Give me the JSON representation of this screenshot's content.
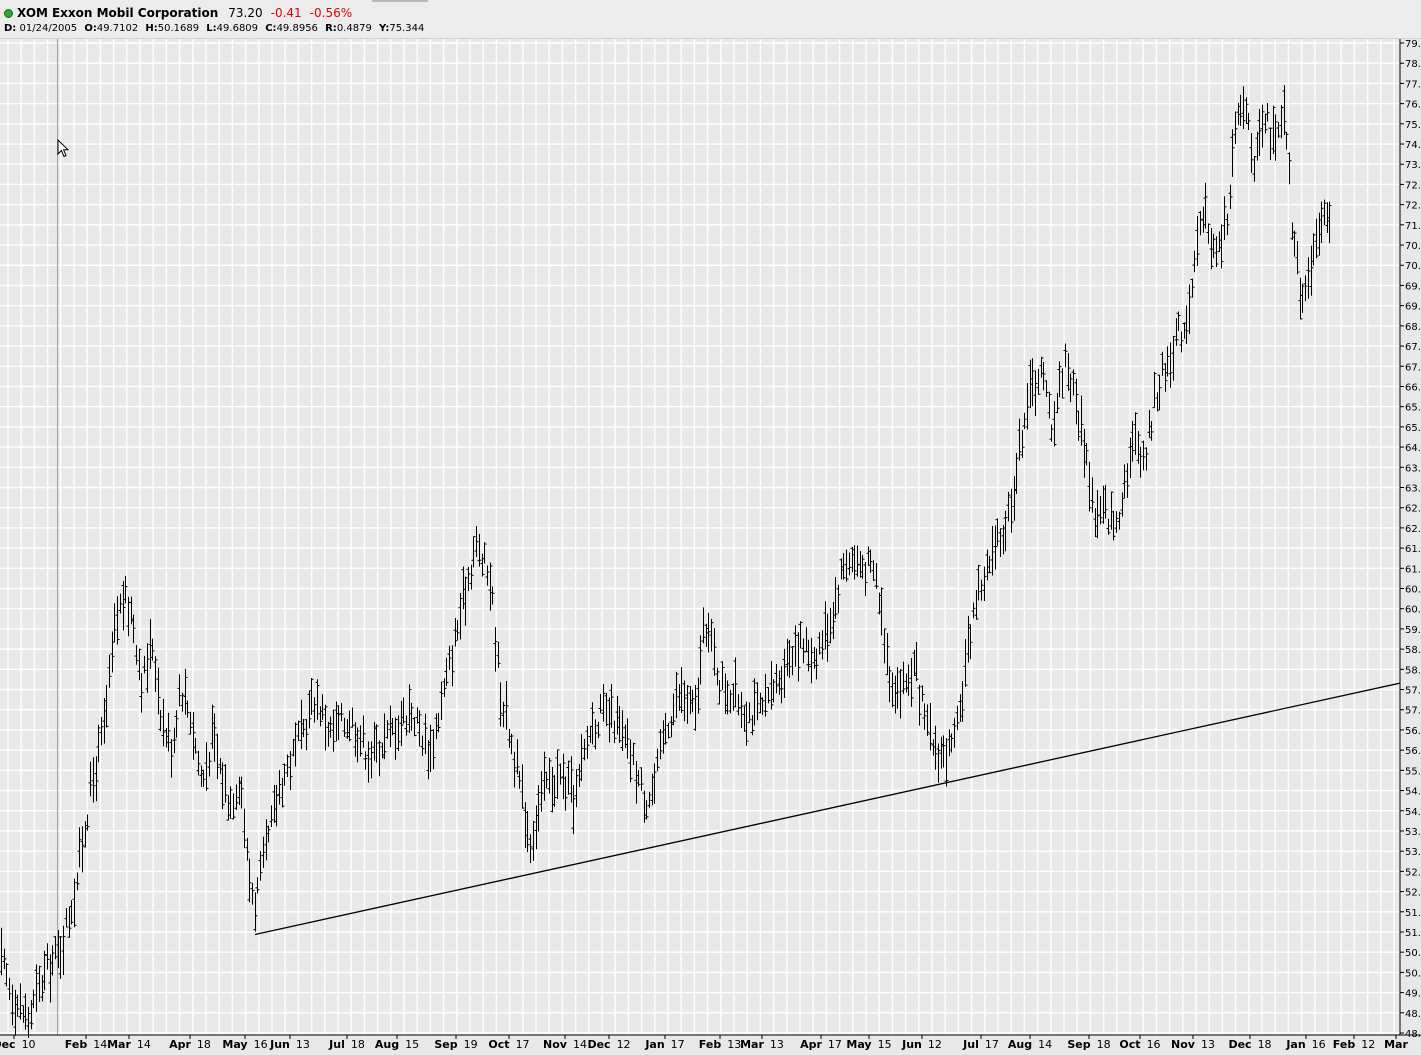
{
  "header": {
    "symbol": "XOM",
    "company": "Exxon Mobil Corporation",
    "price": "73.20",
    "change": "-0.41",
    "change_pct": "-0.56%",
    "status_color": "#2fa82f",
    "negative_color": "#e00000"
  },
  "ohlc": {
    "date_label": "D:",
    "date": "01/24/2005",
    "open_label": "O:",
    "open": "49.7102",
    "high_label": "H:",
    "high": "50.1689",
    "low_label": "L:",
    "low": "49.6809",
    "close_label": "C:",
    "close": "49.8956",
    "range_label": "R:",
    "range": "0.4879",
    "y_label": "Y:",
    "y": "75.344"
  },
  "chart_data": {
    "type": "ohlc-bar",
    "ylim": [
      47.8,
      79.5
    ],
    "y_tick_labels": [
      "79.",
      "78.",
      "77.",
      "76.",
      "75.",
      "74.",
      "73.",
      "72.",
      "72.",
      "71.",
      "70.",
      "70.",
      "69.",
      "69.",
      "68.",
      "67.",
      "67.",
      "66.",
      "65.",
      "65.",
      "64.",
      "63.",
      "63.",
      "62.",
      "62.",
      "61.",
      "61.",
      "60.",
      "60.",
      "59.",
      "58.",
      "58.",
      "57.",
      "57.",
      "56.",
      "56.",
      "55.",
      "54.",
      "54.",
      "53.",
      "53.",
      "52.",
      "52.",
      "51.",
      "51.",
      "50.",
      "50.",
      "49.",
      "48.",
      "48."
    ],
    "x_tick_labels": [
      [
        "Dec",
        "10"
      ],
      [
        "Feb",
        "14"
      ],
      [
        "Mar",
        "14"
      ],
      [
        "Apr",
        "18"
      ],
      [
        "May",
        "16"
      ],
      [
        "Jun",
        "13"
      ],
      [
        "Jul",
        "18"
      ],
      [
        "Aug",
        "15"
      ],
      [
        "Sep",
        "19"
      ],
      [
        "Oct",
        "17"
      ],
      [
        "Nov",
        "14"
      ],
      [
        "Dec",
        "12"
      ],
      [
        "Jan",
        "17"
      ],
      [
        "Feb",
        "13"
      ],
      [
        "Mar",
        "13"
      ],
      [
        "Apr",
        "17"
      ],
      [
        "May",
        "15"
      ],
      [
        "Jun",
        "12"
      ],
      [
        "Jul",
        "17"
      ],
      [
        "Aug",
        "14"
      ],
      [
        "Sep",
        "18"
      ],
      [
        "Oct",
        "16"
      ],
      [
        "Nov",
        "13"
      ],
      [
        "Dec",
        "18"
      ],
      [
        "Jan",
        "16"
      ],
      [
        "Feb",
        "12"
      ],
      [
        "Mar",
        ""
      ]
    ],
    "price_path": [
      [
        0,
        50.2
      ],
      [
        13,
        49.0
      ],
      [
        28,
        48.3
      ],
      [
        45,
        49.8
      ],
      [
        60,
        50.5
      ],
      [
        75,
        52.5
      ],
      [
        90,
        55.5
      ],
      [
        105,
        57.8
      ],
      [
        115,
        60.8
      ],
      [
        122,
        61.7
      ],
      [
        132,
        61.2
      ],
      [
        142,
        59.0
      ],
      [
        152,
        60.3
      ],
      [
        162,
        57.8
      ],
      [
        172,
        56.9
      ],
      [
        180,
        59.0
      ],
      [
        190,
        58.0
      ],
      [
        202,
        55.8
      ],
      [
        212,
        57.3
      ],
      [
        222,
        56.0
      ],
      [
        230,
        55.2
      ],
      [
        240,
        56.1
      ],
      [
        248,
        53.0
      ],
      [
        255,
        52.0
      ],
      [
        265,
        53.5
      ],
      [
        280,
        55.8
      ],
      [
        300,
        57.2
      ],
      [
        315,
        58.6
      ],
      [
        330,
        57.4
      ],
      [
        350,
        57.9
      ],
      [
        370,
        56.7
      ],
      [
        390,
        57.4
      ],
      [
        410,
        58.2
      ],
      [
        430,
        56.8
      ],
      [
        445,
        58.9
      ],
      [
        460,
        61.2
      ],
      [
        475,
        63.4
      ],
      [
        490,
        62.3
      ],
      [
        500,
        58.8
      ],
      [
        510,
        57.3
      ],
      [
        520,
        55.7
      ],
      [
        530,
        54.0
      ],
      [
        545,
        55.8
      ],
      [
        560,
        56.0
      ],
      [
        575,
        55.3
      ],
      [
        590,
        57.6
      ],
      [
        600,
        58.0
      ],
      [
        615,
        57.8
      ],
      [
        630,
        56.7
      ],
      [
        645,
        55.3
      ],
      [
        655,
        55.8
      ],
      [
        665,
        57.6
      ],
      [
        680,
        58.7
      ],
      [
        695,
        58.0
      ],
      [
        705,
        61.0
      ],
      [
        720,
        59.0
      ],
      [
        735,
        58.6
      ],
      [
        750,
        58.0
      ],
      [
        765,
        58.2
      ],
      [
        780,
        59.3
      ],
      [
        795,
        60.3
      ],
      [
        815,
        59.9
      ],
      [
        830,
        61.0
      ],
      [
        845,
        63.0
      ],
      [
        860,
        62.8
      ],
      [
        875,
        62.5
      ],
      [
        890,
        59.2
      ],
      [
        900,
        58.8
      ],
      [
        915,
        59.5
      ],
      [
        925,
        57.6
      ],
      [
        935,
        56.9
      ],
      [
        945,
        56.7
      ],
      [
        955,
        57.0
      ],
      [
        965,
        59.5
      ],
      [
        975,
        61.7
      ],
      [
        990,
        62.8
      ],
      [
        1005,
        64.0
      ],
      [
        1015,
        65.5
      ],
      [
        1025,
        67.8
      ],
      [
        1040,
        69.0
      ],
      [
        1052,
        67.2
      ],
      [
        1065,
        69.4
      ],
      [
        1075,
        68.0
      ],
      [
        1085,
        66.5
      ],
      [
        1095,
        64.2
      ],
      [
        1105,
        64.5
      ],
      [
        1115,
        64.0
      ],
      [
        1125,
        65.6
      ],
      [
        1135,
        66.8
      ],
      [
        1145,
        66.2
      ],
      [
        1155,
        68.2
      ],
      [
        1165,
        69.0
      ],
      [
        1175,
        70.0
      ],
      [
        1185,
        70.4
      ],
      [
        1195,
        72.5
      ],
      [
        1205,
        74.0
      ],
      [
        1215,
        72.5
      ],
      [
        1225,
        73.5
      ],
      [
        1235,
        76.5
      ],
      [
        1245,
        77.5
      ],
      [
        1255,
        75.5
      ],
      [
        1265,
        76.9
      ],
      [
        1275,
        76.1
      ],
      [
        1285,
        77.0
      ],
      [
        1292,
        73.5
      ],
      [
        1300,
        71.5
      ],
      [
        1310,
        72.0
      ],
      [
        1318,
        73.0
      ],
      [
        1325,
        74.5
      ],
      [
        1332,
        73.2
      ]
    ],
    "trendline": {
      "start": [
        255,
        51.0
      ],
      "end": [
        1400,
        59.0
      ]
    },
    "grid": true,
    "axis_position": "right"
  }
}
